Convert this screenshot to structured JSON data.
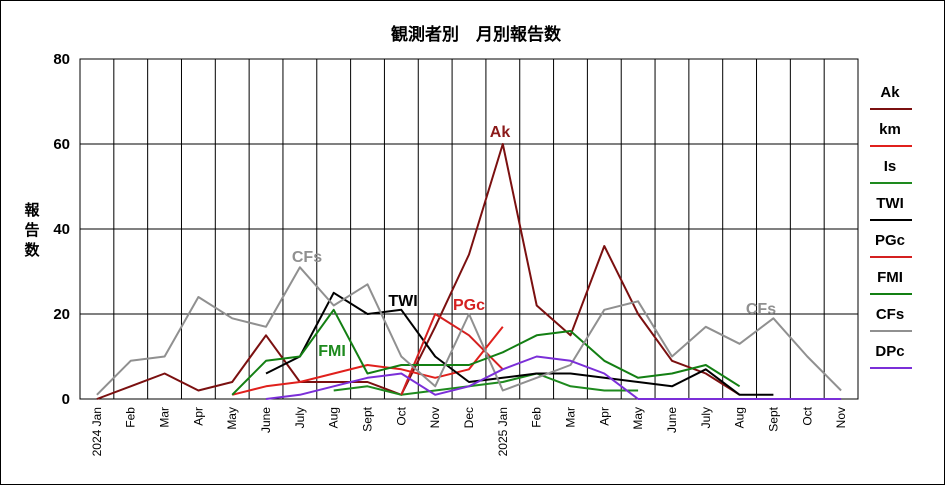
{
  "chart_data": {
    "type": "line",
    "title": "観測者別　月別報告数",
    "ylabel": "報告数",
    "xlabel": "",
    "ylim": [
      0,
      80
    ],
    "yticks": [
      0,
      20,
      40,
      60,
      80
    ],
    "grid": true,
    "legend_position": "right",
    "categories": [
      "2024 Jan",
      "Feb",
      "Mar",
      "Apr",
      "May",
      "June",
      "July",
      "Aug",
      "Sept",
      "Oct",
      "Nov",
      "Dec",
      "2025 Jan",
      "Feb",
      "Mar",
      "Apr",
      "May",
      "June",
      "July",
      "Aug",
      "Sept",
      "Oct",
      "Nov"
    ],
    "series": [
      {
        "name": "Ak",
        "color": "#7b1010",
        "values": [
          0,
          3,
          6,
          2,
          4,
          15,
          4,
          4,
          4,
          1,
          17,
          34,
          60,
          22,
          15,
          36,
          20,
          9,
          6,
          1,
          null,
          null,
          null
        ]
      },
      {
        "name": "km",
        "color": "#e0201c",
        "values": [
          null,
          null,
          null,
          null,
          1,
          3,
          4,
          6,
          8,
          7,
          5,
          7,
          17,
          null,
          null,
          null,
          null,
          null,
          null,
          null,
          null,
          null,
          null
        ]
      },
      {
        "name": "Is",
        "color": "#1e8a1e",
        "values": [
          null,
          null,
          null,
          null,
          null,
          null,
          null,
          2,
          3,
          1,
          2,
          3,
          4,
          6,
          3,
          2,
          2,
          null,
          null,
          null,
          null,
          null,
          null
        ]
      },
      {
        "name": "TWI",
        "color": "#000000",
        "values": [
          null,
          null,
          null,
          null,
          null,
          6,
          10,
          25,
          20,
          21,
          10,
          4,
          5,
          6,
          6,
          5,
          4,
          3,
          7,
          1,
          1,
          null,
          null
        ]
      },
      {
        "name": "PGc",
        "color": "#d42020",
        "values": [
          null,
          null,
          null,
          null,
          null,
          null,
          null,
          null,
          null,
          1,
          20,
          15,
          7,
          null,
          null,
          null,
          null,
          null,
          null,
          null,
          null,
          null,
          null
        ]
      },
      {
        "name": "FMI",
        "color": "#137f13",
        "values": [
          null,
          null,
          null,
          null,
          1,
          9,
          10,
          21,
          6,
          8,
          8,
          8,
          11,
          15,
          16,
          9,
          5,
          6,
          8,
          3,
          null,
          null,
          null
        ]
      },
      {
        "name": "CFs",
        "color": "#909090",
        "values": [
          1,
          9,
          10,
          24,
          19,
          17,
          31,
          22,
          27,
          10,
          3,
          20,
          2,
          5,
          8,
          21,
          23,
          10,
          17,
          13,
          19,
          10,
          2
        ]
      },
      {
        "name": "DPc",
        "color": "#7b2fd8",
        "values": [
          null,
          null,
          null,
          null,
          null,
          0,
          1,
          3,
          5,
          6,
          1,
          3,
          7,
          10,
          9,
          6,
          0,
          0,
          0,
          0,
          0,
          0,
          0
        ]
      }
    ],
    "annotations": [
      {
        "text": "Ak",
        "color": "#8b1a1a"
      },
      {
        "text": "CFs",
        "color": "#909090"
      },
      {
        "text": "TWI",
        "color": "#000000"
      },
      {
        "text": "PGc",
        "color": "#d42020"
      },
      {
        "text": "FMI",
        "color": "#1e8a1e"
      },
      {
        "text": "CFs",
        "color": "#909090"
      }
    ]
  }
}
